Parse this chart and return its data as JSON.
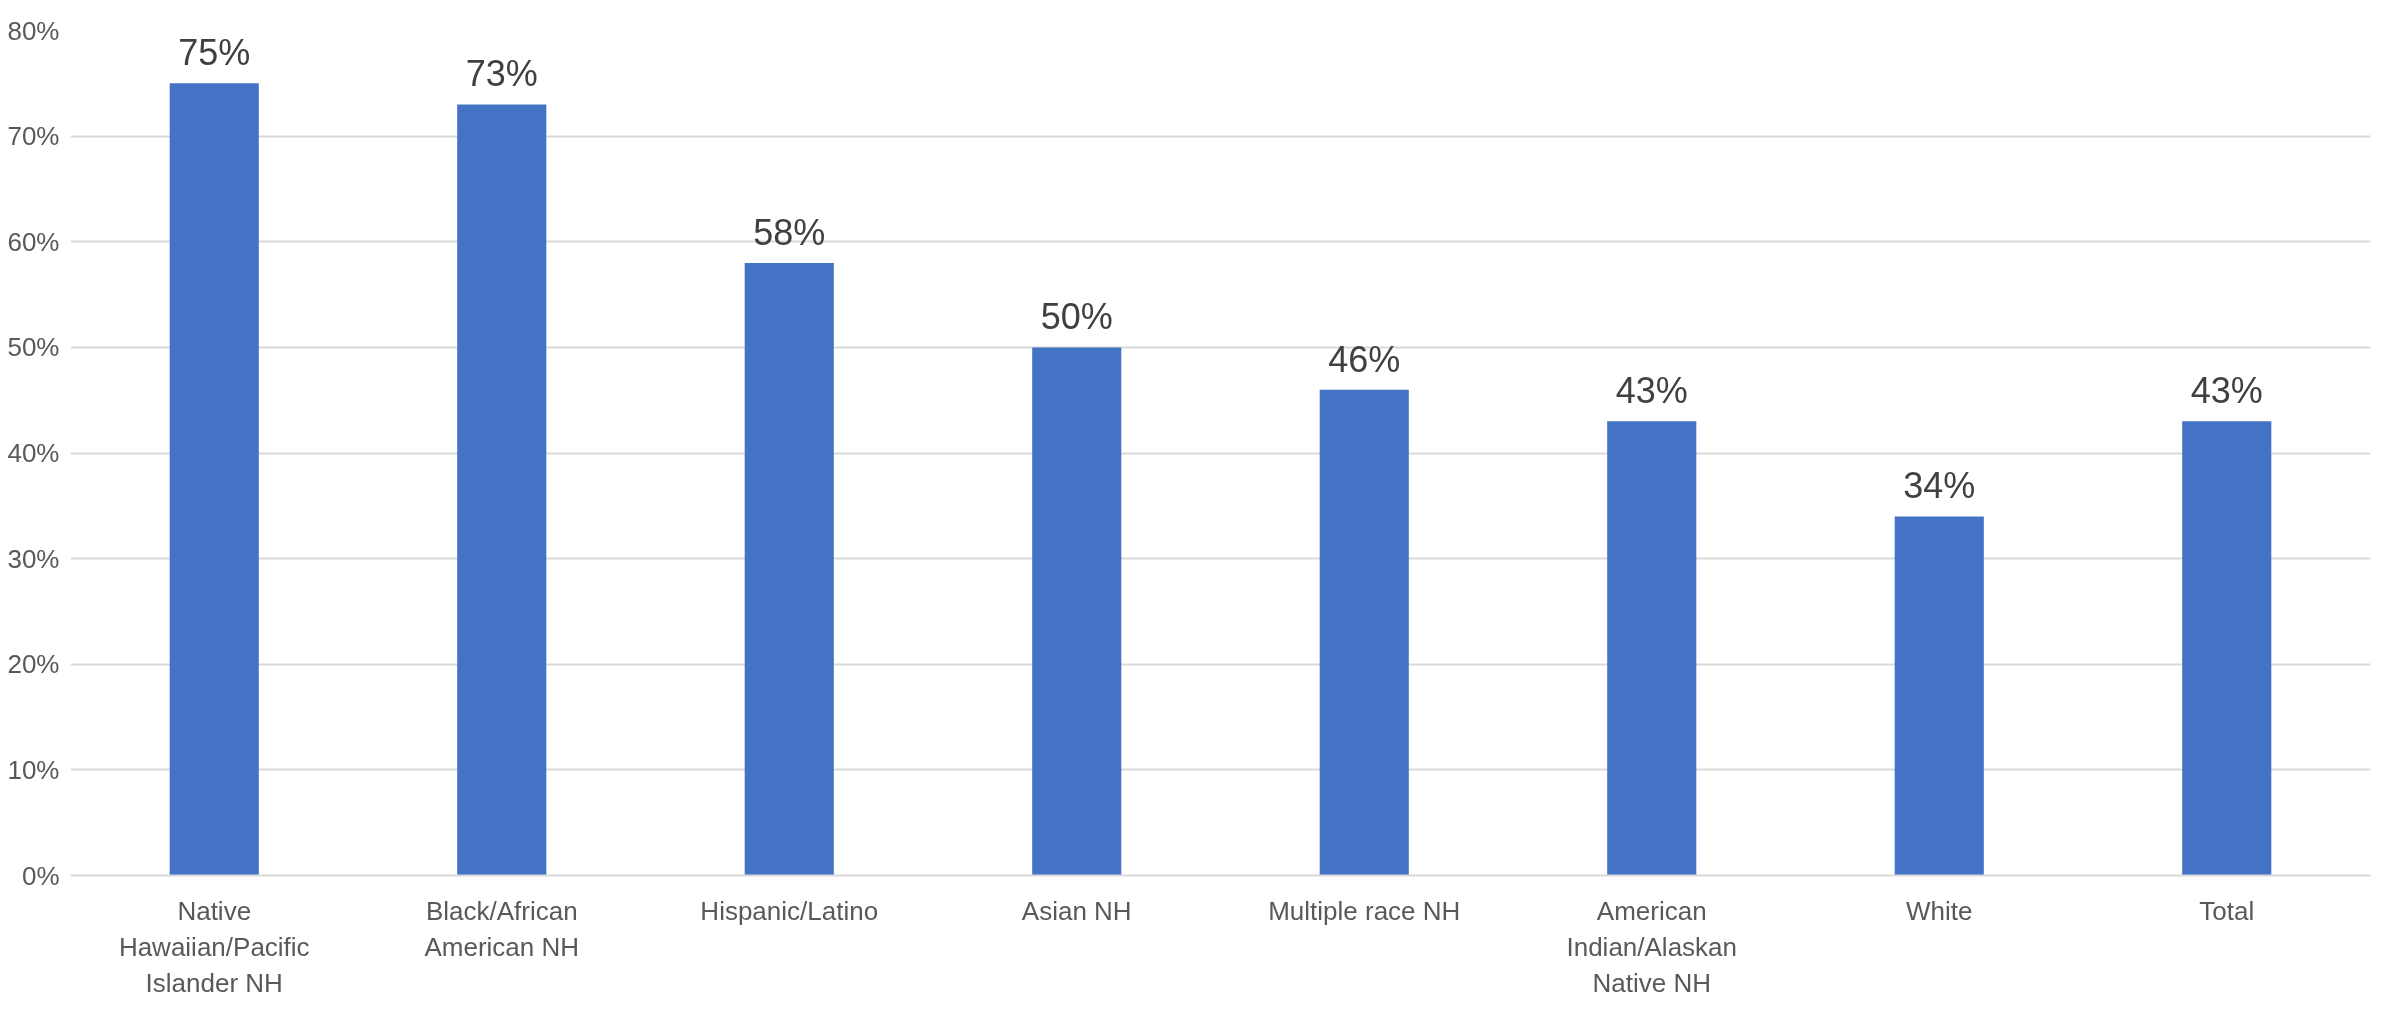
{
  "chart_data": {
    "type": "bar",
    "categories": [
      "Native Hawaiian/Pacific Islander NH",
      "Black/African American NH",
      "Hispanic/Latino",
      "Asian NH",
      "Multiple race NH",
      "American Indian/Alaskan Native NH",
      "White",
      "Total"
    ],
    "values": [
      75,
      73,
      58,
      50,
      46,
      43,
      34,
      43
    ],
    "value_labels": [
      "75%",
      "73%",
      "58%",
      "50%",
      "46%",
      "43%",
      "34%",
      "43%"
    ],
    "color": "#4472c4",
    "ylim": [
      0,
      80
    ],
    "yticks": [
      {
        "value": 0,
        "label": "0%"
      },
      {
        "value": 10,
        "label": "10%"
      },
      {
        "value": 20,
        "label": "20%"
      },
      {
        "value": 30,
        "label": "30%"
      },
      {
        "value": 40,
        "label": "40%"
      },
      {
        "value": 50,
        "label": "50%"
      },
      {
        "value": 60,
        "label": "60%"
      },
      {
        "value": 70,
        "label": "70%"
      },
      {
        "value": 80,
        "label": "80%"
      }
    ],
    "grid": "y"
  }
}
